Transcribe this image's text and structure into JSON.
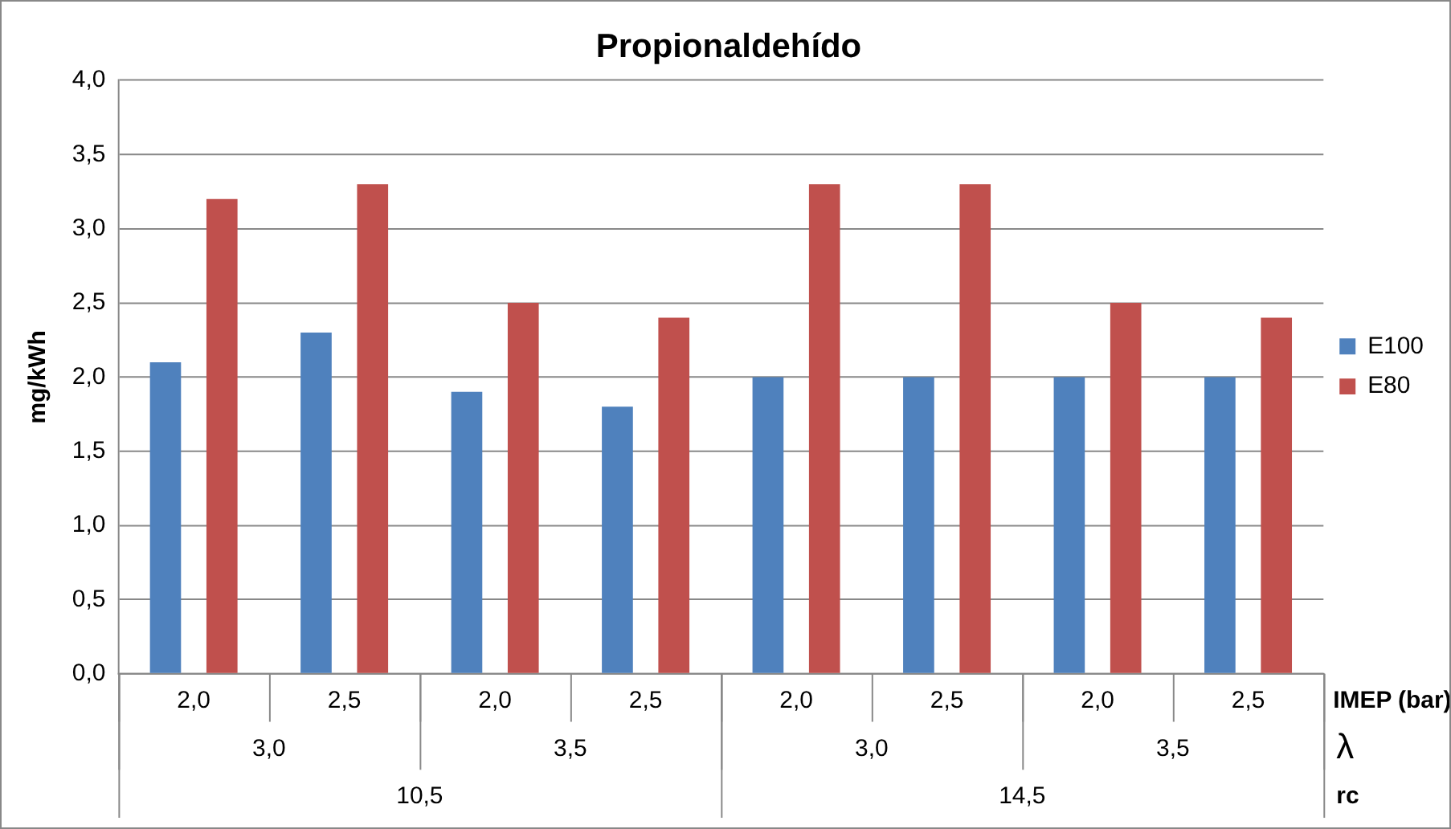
{
  "chart_data": {
    "type": "bar",
    "title": "Propionaldehído",
    "ylabel": "mg/kWh",
    "xlabel": "IMEP (bar)",
    "categories": [
      "2,0",
      "2,5",
      "2,0",
      "2,5",
      "2,0",
      "2,5",
      "2,0",
      "2,5"
    ],
    "series": [
      {
        "name": "E100",
        "color": "#4f81bd",
        "values": [
          2.1,
          2.3,
          1.9,
          1.8,
          2.0,
          2.0,
          2.0,
          2.0
        ]
      },
      {
        "name": "E80",
        "color": "#c0504d",
        "values": [
          3.2,
          3.3,
          2.5,
          2.4,
          3.3,
          3.3,
          2.5,
          2.4
        ]
      }
    ],
    "annotations": [
      "3,0",
      "3,5",
      "3,0",
      "3,5",
      "λ",
      "10,5",
      "14,5",
      "rc"
    ],
    "ylim": [
      0,
      4
    ],
    "yticks": [
      {
        "value": 0,
        "label": "0,0"
      },
      {
        "value": 0.5,
        "label": "0,5"
      },
      {
        "value": 1,
        "label": "1,0"
      },
      {
        "value": 1.5,
        "label": "1,5"
      },
      {
        "value": 2,
        "label": "2,0"
      },
      {
        "value": 2.5,
        "label": "2,5"
      },
      {
        "value": 3,
        "label": "3,0"
      },
      {
        "value": 3.5,
        "label": "3,5"
      },
      {
        "value": 4,
        "label": "4,0"
      }
    ],
    "grid": "y",
    "legend": "right"
  }
}
